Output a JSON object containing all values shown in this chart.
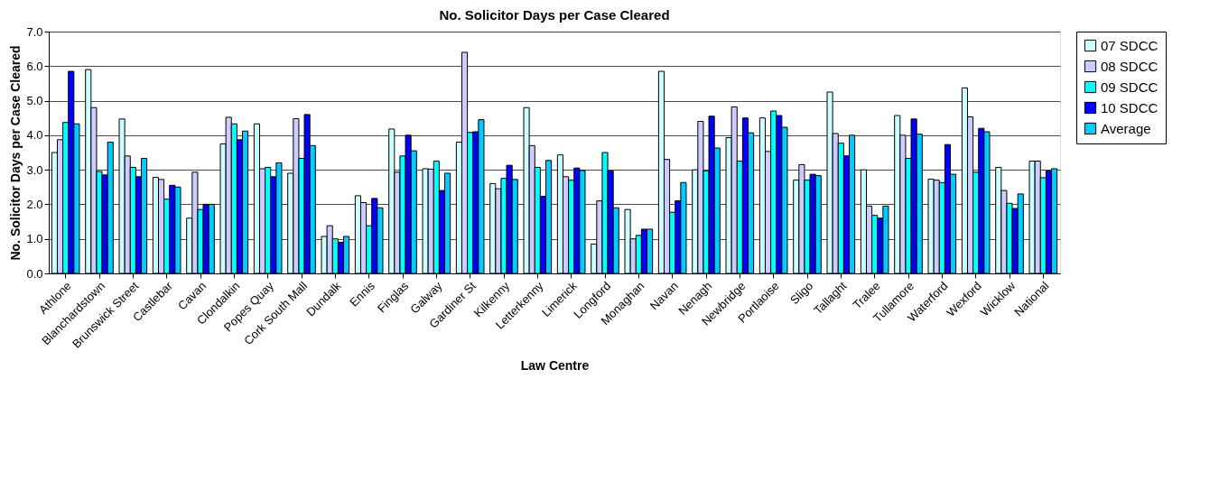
{
  "chart_data": {
    "type": "bar",
    "title": "No. Solicitor Days per Case Cleared",
    "xlabel": "Law Centre",
    "ylabel": "No. Solicitor Days per Case Cleared",
    "categories": [
      "Athlone",
      "Blanchardstown",
      "Brunswick Street",
      "Castlebar",
      "Cavan",
      "Clondalkin",
      "Popes Quay",
      "Cork South Mall",
      "Dundalk",
      "Ennis",
      "Finglas",
      "Galway",
      "Gardiner St",
      "Kilkenny",
      "Letterkenny",
      "Limerick",
      "Longford",
      "Monaghan",
      "Navan",
      "Nenagh",
      "Newbridge",
      "Portlaoise",
      "Sligo",
      "Tallaght",
      "Tralee",
      "Tullamore",
      "Waterford",
      "Wexford",
      "Wicklow",
      "National"
    ],
    "series": [
      {
        "name": "07 SDCC",
        "color": "#ccffff",
        "values": [
          3.5,
          5.9,
          4.47,
          2.78,
          1.6,
          3.75,
          4.33,
          2.9,
          1.07,
          2.25,
          4.18,
          3.03,
          3.8,
          2.6,
          4.8,
          3.43,
          0.85,
          1.85,
          5.85,
          3.0,
          3.93,
          4.5,
          2.7,
          5.25,
          3.0,
          4.57,
          2.73,
          5.37,
          3.07,
          3.25
        ]
      },
      {
        "name": "08 SDCC",
        "color": "#ccccff",
        "values": [
          3.87,
          4.8,
          3.4,
          2.72,
          2.93,
          4.52,
          3.03,
          4.48,
          1.38,
          2.05,
          2.93,
          3.02,
          6.4,
          2.45,
          3.7,
          2.8,
          2.1,
          1.0,
          3.3,
          4.4,
          4.82,
          3.53,
          3.15,
          4.05,
          1.95,
          4.0,
          2.7,
          4.53,
          2.4,
          3.25
        ]
      },
      {
        "name": "09 SDCC",
        "color": "#00ffff",
        "values": [
          4.37,
          2.95,
          3.07,
          2.15,
          1.85,
          4.33,
          3.07,
          3.33,
          1.0,
          1.38,
          3.4,
          3.25,
          4.08,
          2.75,
          3.07,
          2.7,
          3.5,
          1.1,
          1.77,
          2.97,
          3.25,
          4.7,
          2.7,
          3.77,
          1.68,
          3.33,
          2.63,
          2.93,
          2.03,
          2.77
        ]
      },
      {
        "name": "10 SDCC",
        "color": "#0000ff",
        "values": [
          5.85,
          2.85,
          2.8,
          2.55,
          2.0,
          3.87,
          2.8,
          4.6,
          0.9,
          2.17,
          4.0,
          2.4,
          4.1,
          3.13,
          2.23,
          3.05,
          2.97,
          1.28,
          2.1,
          4.55,
          4.5,
          4.57,
          2.87,
          3.4,
          1.6,
          4.47,
          3.73,
          4.2,
          1.88,
          2.97
        ]
      },
      {
        "name": "Average",
        "color": "#00ccff",
        "values": [
          4.33,
          3.8,
          3.33,
          2.5,
          2.0,
          4.12,
          3.2,
          3.7,
          1.07,
          1.9,
          3.55,
          2.9,
          4.45,
          2.72,
          3.27,
          2.98,
          1.9,
          1.28,
          2.63,
          3.63,
          4.07,
          4.23,
          2.83,
          4.0,
          1.95,
          4.03,
          2.87,
          4.1,
          2.3,
          3.03
        ]
      }
    ],
    "ylim": [
      0,
      7
    ],
    "yticks": [
      {
        "value": 0,
        "label": "0.0"
      },
      {
        "value": 1,
        "label": "1.0"
      },
      {
        "value": 2,
        "label": "2.0"
      },
      {
        "value": 3,
        "label": "3.0"
      },
      {
        "value": 4,
        "label": "4.0"
      },
      {
        "value": 5,
        "label": "5.0"
      },
      {
        "value": 6,
        "label": "6.0"
      },
      {
        "value": 7,
        "label": "7.0"
      }
    ],
    "grid": "y",
    "legend": "right"
  }
}
